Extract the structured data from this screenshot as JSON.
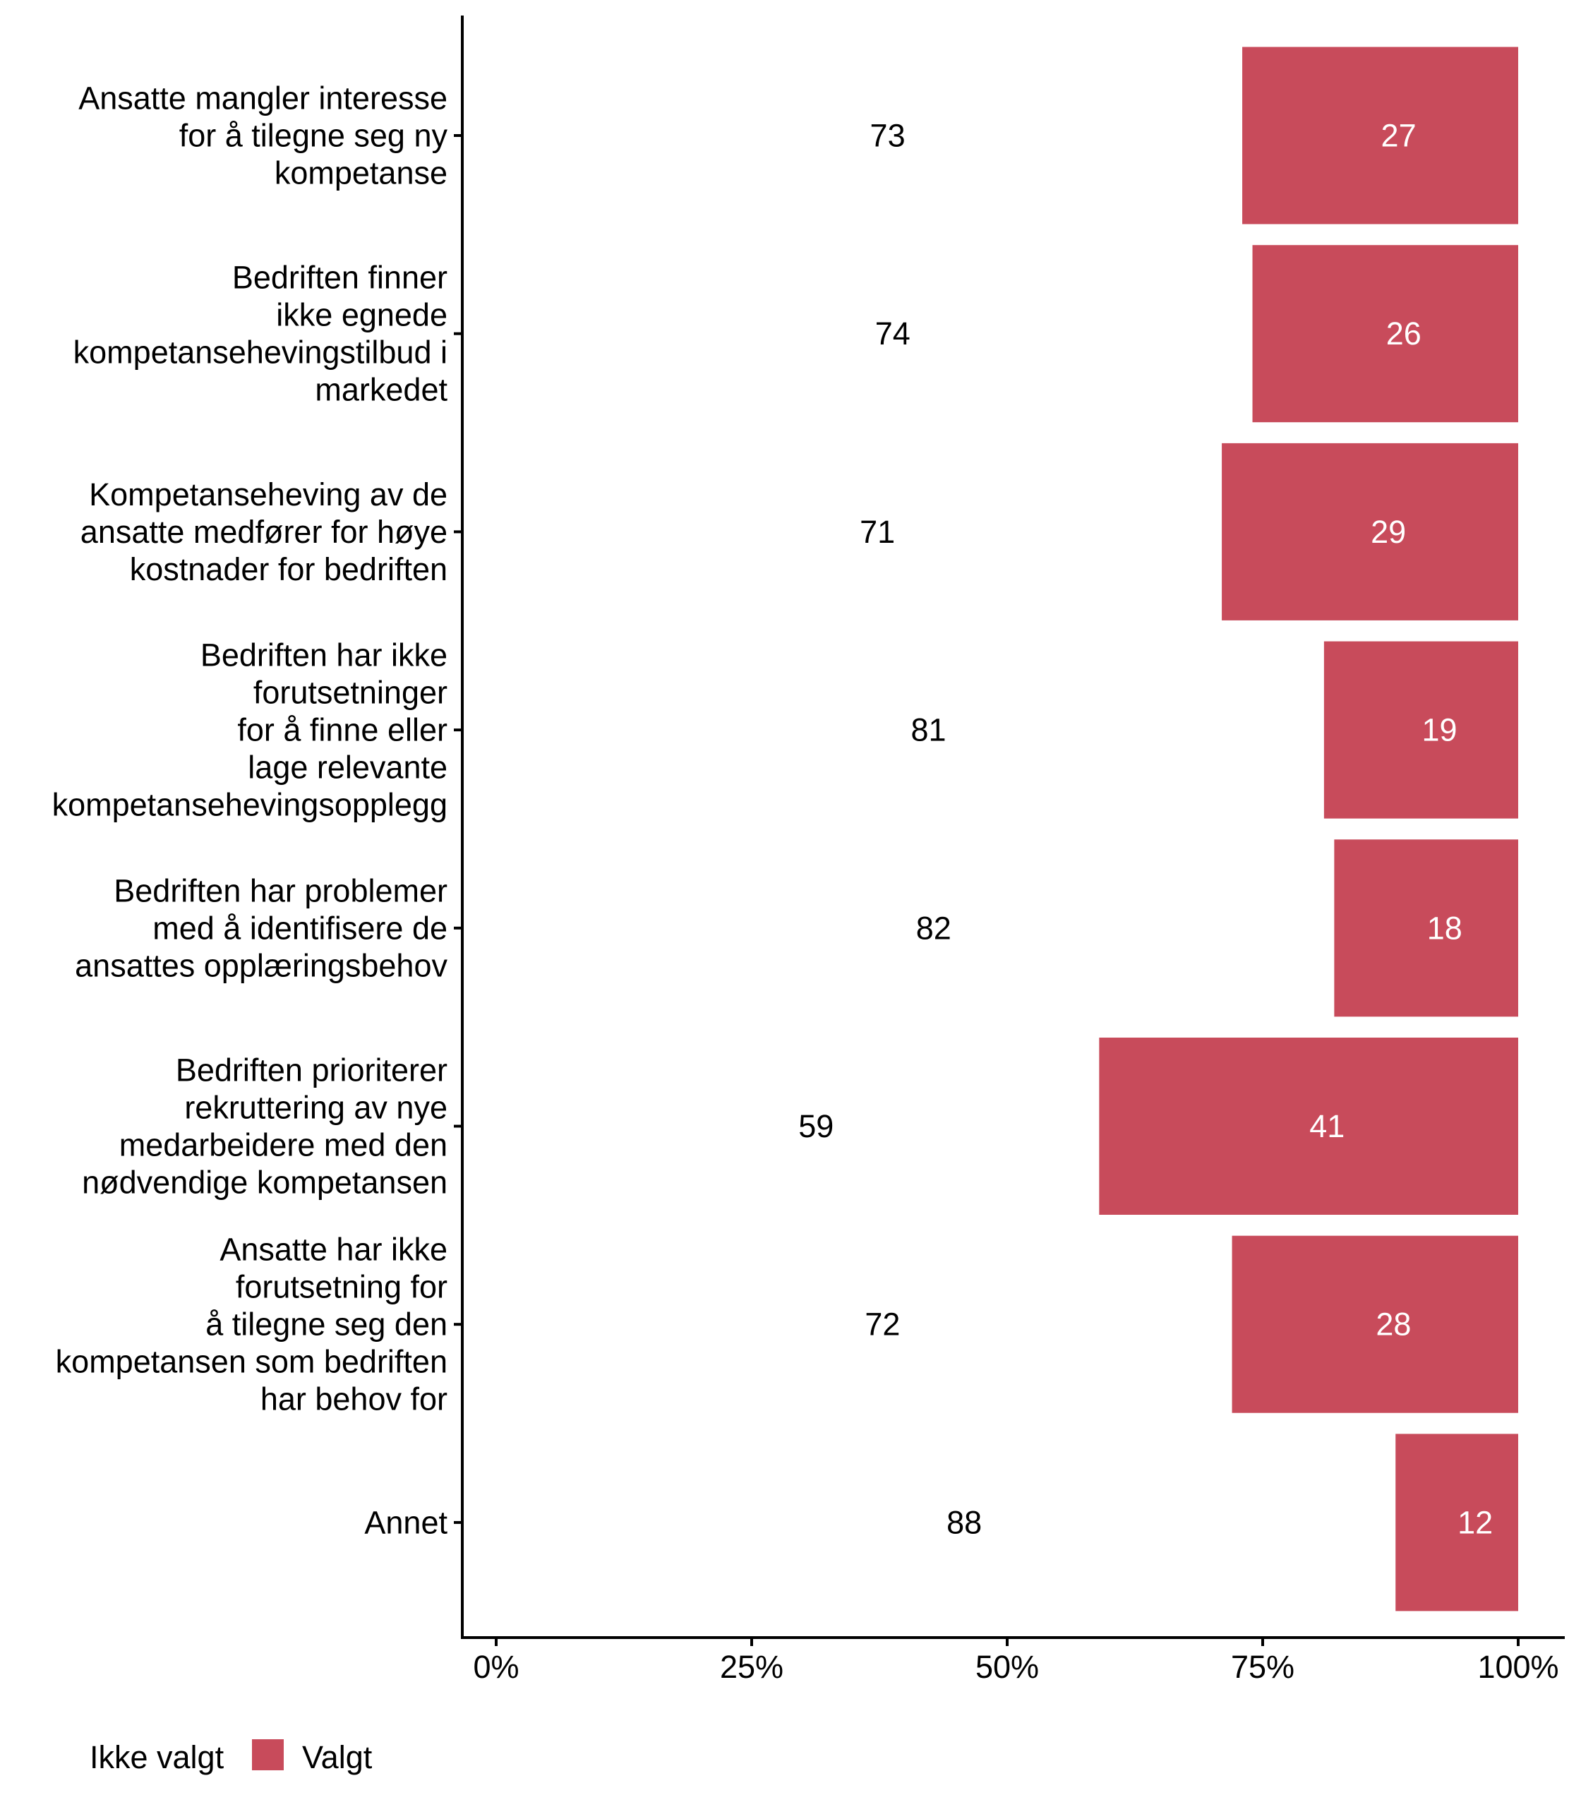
{
  "chart_data": {
    "type": "bar",
    "orientation": "horizontal",
    "stacked": "percent",
    "title": "",
    "xlabel": "",
    "ylabel": "",
    "xlim": [
      0,
      100
    ],
    "x_ticks": [
      "0%",
      "25%",
      "50%",
      "75%",
      "100%"
    ],
    "x_tick_values": [
      0,
      25,
      50,
      75,
      100
    ],
    "grid": false,
    "legend_position": "bottom-left",
    "categories": [
      [
        "Ansatte mangler interesse",
        "for å tilegne seg ny",
        "kompetanse"
      ],
      [
        "Bedriften finner",
        "ikke egnede",
        "kompetansehevingstilbud i",
        "markedet"
      ],
      [
        "Kompetanseheving av de",
        "ansatte medfører for høye",
        "kostnader for bedriften"
      ],
      [
        "Bedriften har ikke",
        "forutsetninger",
        "for å finne eller",
        "lage relevante",
        "kompetansehevingsopplegg"
      ],
      [
        "Bedriften har problemer",
        "med å identifisere de",
        "ansattes opplæringsbehov"
      ],
      [
        "Bedriften prioriterer",
        "rekruttering av nye",
        "medarbeidere med den",
        "nødvendige kompetansen"
      ],
      [
        "Ansatte har ikke",
        "forutsetning for",
        "å tilegne seg den",
        "kompetansen som bedriften",
        "har behov for"
      ],
      [
        "Annet"
      ]
    ],
    "series": [
      {
        "name": "Ikke valgt",
        "color": "#FFFFFF",
        "values": [
          73,
          74,
          71,
          81,
          82,
          59,
          72,
          88
        ]
      },
      {
        "name": "Valgt",
        "color": "#C84B5B",
        "values": [
          27,
          26,
          29,
          19,
          18,
          41,
          28,
          12
        ]
      }
    ],
    "legend": [
      {
        "label": "Ikke valgt",
        "color": "#FFFFFF"
      },
      {
        "label": "Valgt",
        "color": "#C84B5B"
      }
    ]
  }
}
